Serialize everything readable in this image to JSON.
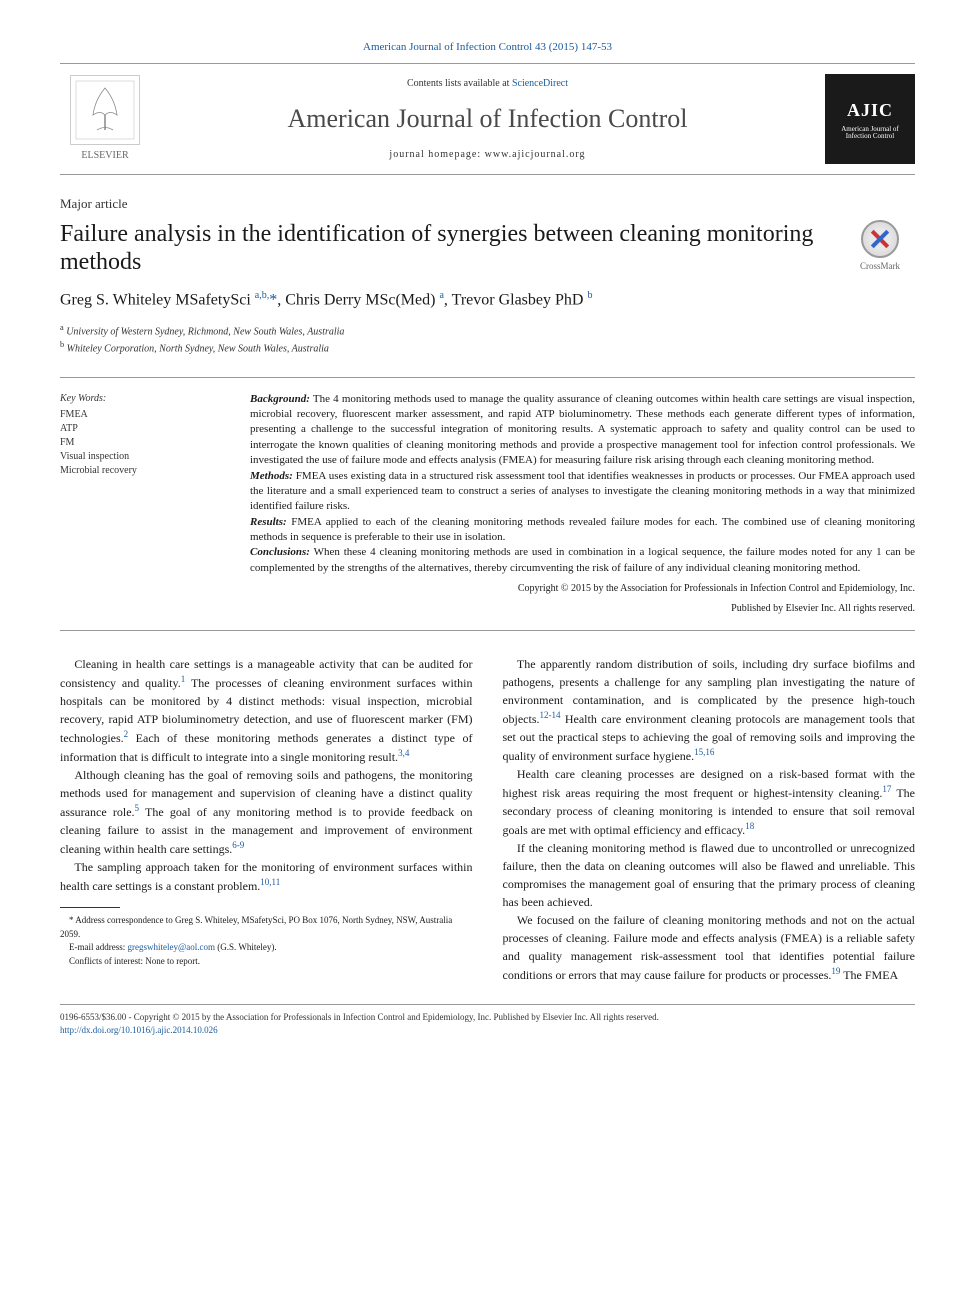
{
  "journal_ref": "American Journal of Infection Control 43 (2015) 147-53",
  "header": {
    "publisher": "ELSEVIER",
    "contents_prefix": "Contents lists available at ",
    "contents_link": "ScienceDirect",
    "journal_title": "American Journal of Infection Control",
    "homepage_prefix": "journal homepage: ",
    "homepage": "www.ajicjournal.org",
    "ajic_abbr": "AJIC",
    "ajic_full": "American Journal of Infection Control"
  },
  "article_type": "Major article",
  "title": "Failure analysis in the identification of synergies between cleaning monitoring methods",
  "crossmark": "CrossMark",
  "authors_html": "Greg S. Whiteley MSafetySci <sup>a,b,</sup><span class='star'>*</span>, Chris Derry MSc(Med) <sup>a</sup>, Trevor Glasbey PhD <sup>b</sup>",
  "affiliations": [
    {
      "sup": "a",
      "text": "University of Western Sydney, Richmond, New South Wales, Australia"
    },
    {
      "sup": "b",
      "text": "Whiteley Corporation, North Sydney, New South Wales, Australia"
    }
  ],
  "keywords": {
    "label": "Key Words:",
    "items": [
      "FMEA",
      "ATP",
      "FM",
      "Visual inspection",
      "Microbial recovery"
    ]
  },
  "abstract": {
    "background_label": "Background:",
    "background": " The 4 monitoring methods used to manage the quality assurance of cleaning outcomes within health care settings are visual inspection, microbial recovery, fluorescent marker assessment, and rapid ATP bioluminometry. These methods each generate different types of information, presenting a challenge to the successful integration of monitoring results. A systematic approach to safety and quality control can be used to interrogate the known qualities of cleaning monitoring methods and provide a prospective management tool for infection control professionals. We investigated the use of failure mode and effects analysis (FMEA) for measuring failure risk arising through each cleaning monitoring method.",
    "methods_label": "Methods:",
    "methods": " FMEA uses existing data in a structured risk assessment tool that identifies weaknesses in products or processes. Our FMEA approach used the literature and a small experienced team to construct a series of analyses to investigate the cleaning monitoring methods in a way that minimized identified failure risks.",
    "results_label": "Results:",
    "results": " FMEA applied to each of the cleaning monitoring methods revealed failure modes for each. The combined use of cleaning monitoring methods in sequence is preferable to their use in isolation.",
    "conclusions_label": "Conclusions:",
    "conclusions": " When these 4 cleaning monitoring methods are used in combination in a logical sequence, the failure modes noted for any 1 can be complemented by the strengths of the alternatives, thereby circumventing the risk of failure of any individual cleaning monitoring method.",
    "copyright1": "Copyright © 2015 by the Association for Professionals in Infection Control and Epidemiology, Inc.",
    "copyright2": "Published by Elsevier Inc. All rights reserved."
  },
  "body": {
    "p1": "Cleaning in health care settings is a manageable activity that can be audited for consistency and quality.",
    "p1_sup": "1",
    "p1b": " The processes of cleaning environment surfaces within hospitals can be monitored by 4 distinct methods: visual inspection, microbial recovery, rapid ATP bioluminometry detection, and use of fluorescent marker (FM) technologies.",
    "p1b_sup": "2",
    "p1c": " Each of these monitoring methods generates a distinct type of information that is difficult to integrate into a single monitoring result.",
    "p1c_sup": "3,4",
    "p2": "Although cleaning has the goal of removing soils and pathogens, the monitoring methods used for management and supervision of cleaning have a distinct quality assurance role.",
    "p2_sup": "5",
    "p2b": " The goal of any monitoring method is to provide feedback on cleaning failure to assist in the management and improvement of environment cleaning within health care settings.",
    "p2b_sup": "6-9",
    "p3": "The sampling approach taken for the monitoring of environment surfaces within health care settings is a constant problem.",
    "p3_sup": "10,11",
    "p4a": "The apparently random distribution of soils, including dry surface biofilms and pathogens, presents a challenge for any sampling plan investigating the nature of environment contamination, and is complicated by the presence high-touch objects.",
    "p4a_sup": "12-14",
    "p4b": " Health care environment cleaning protocols are management tools that set out the practical steps to achieving the goal of removing soils and improving the quality of environment surface hygiene.",
    "p4b_sup": "15,16",
    "p5": "Health care cleaning processes are designed on a risk-based format with the highest risk areas requiring the most frequent or highest-intensity cleaning.",
    "p5_sup": "17",
    "p5b": " The secondary process of cleaning monitoring is intended to ensure that soil removal goals are met with optimal efficiency and efficacy.",
    "p5b_sup": "18",
    "p6": "If the cleaning monitoring method is flawed due to uncontrolled or unrecognized failure, then the data on cleaning outcomes will also be flawed and unreliable. This compromises the management goal of ensuring that the primary process of cleaning has been achieved.",
    "p7": "We focused on the failure of cleaning monitoring methods and not on the actual processes of cleaning. Failure mode and effects analysis (FMEA) is a reliable safety and quality management risk-assessment tool that identifies potential failure conditions or errors that may cause failure for products or processes.",
    "p7_sup": "19",
    "p7b": " The FMEA"
  },
  "footnotes": {
    "correspondence": "* Address correspondence to Greg S. Whiteley, MSafetySci, PO Box 1076, North Sydney, NSW, Australia 2059.",
    "email_label": "E-mail address: ",
    "email": "gregswhiteley@aol.com",
    "email_attrib": " (G.S. Whiteley).",
    "conflicts": "Conflicts of interest: None to report."
  },
  "bottom": {
    "line1": "0196-6553/$36.00 - Copyright © 2015 by the Association for Professionals in Infection Control and Epidemiology, Inc. Published by Elsevier Inc. All rights reserved.",
    "doi": "http://dx.doi.org/10.1016/j.ajic.2014.10.026"
  },
  "colors": {
    "link": "#1a5a9e",
    "text": "#1a1a1a",
    "rule": "#999999"
  }
}
